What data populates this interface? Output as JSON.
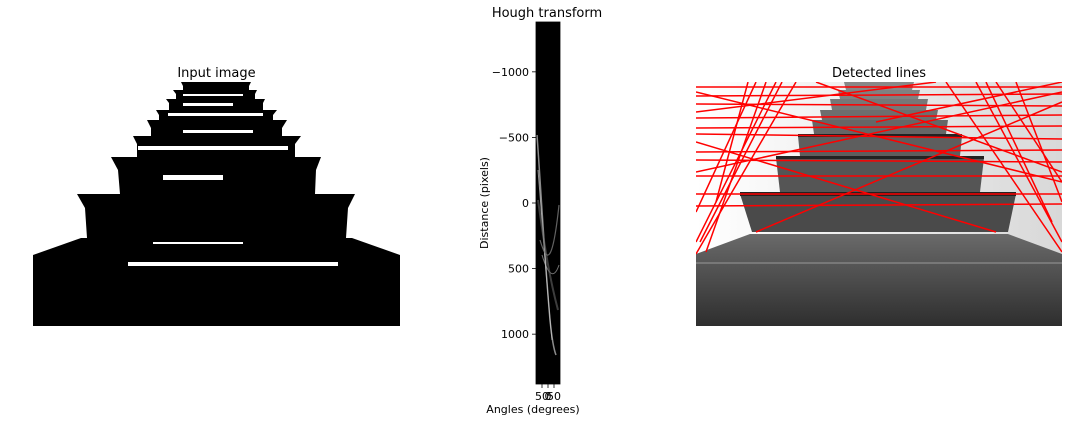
{
  "panels": {
    "input": {
      "title": "Input image"
    },
    "hough": {
      "title": "Hough transform",
      "xlabel": "Angles (degrees)",
      "ylabel": "Distance (pixels)"
    },
    "detected": {
      "title": "Detected lines"
    }
  },
  "colors": {
    "line": "#ff0000",
    "background": "#ffffff"
  },
  "chart_data": [
    {
      "type": "heatmap",
      "panel": "hough",
      "xlabel": "Angles (degrees)",
      "ylabel": "Distance (pixels)",
      "ylim": [
        1380,
        -1380
      ],
      "y_ticks": [
        -1000,
        -500,
        0,
        500,
        1000
      ],
      "y_tick_labels": [
        "−1000",
        "−500",
        "0",
        "500",
        "1000"
      ],
      "x_tick_labels": [
        "50",
        "0",
        "50"
      ],
      "colormap": "gray"
    }
  ]
}
